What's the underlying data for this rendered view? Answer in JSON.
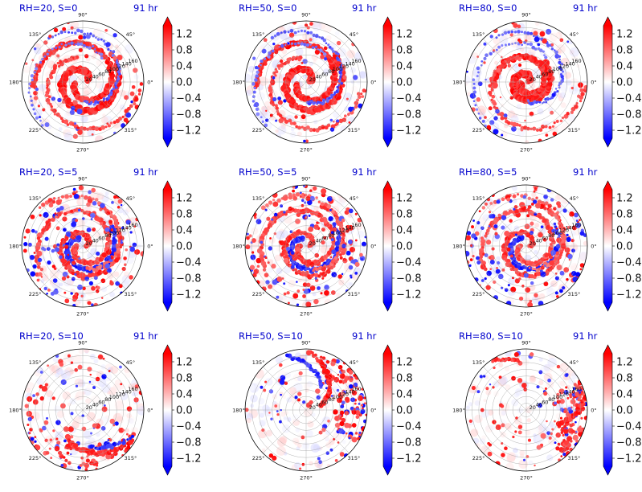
{
  "time_label": "91 hr",
  "colorbar": {
    "ticks": [
      "1.2",
      "0.8",
      "0.4",
      "0.0",
      "−0.4",
      "−0.8",
      "−1.2"
    ],
    "tick_values": [
      1.2,
      0.8,
      0.4,
      0.0,
      -0.4,
      -0.8,
      -1.2
    ],
    "vmin": -1.4,
    "vmax": 1.4,
    "cmap": "bwr",
    "extend": "both"
  },
  "polar_axes": {
    "angle_labels": [
      "0°",
      "45°",
      "90°",
      "135°",
      "180°",
      "225°",
      "270°",
      "315°"
    ],
    "angle_values": [
      0,
      45,
      90,
      135,
      180,
      225,
      270,
      315
    ],
    "radial_labels": [
      "20",
      "40",
      "60",
      "80",
      "100",
      "120",
      "140",
      "160"
    ],
    "radial_values": [
      20,
      40,
      60,
      80,
      100,
      120,
      140,
      160
    ],
    "rmax": 180
  },
  "colors": {
    "positive": "#ff0000",
    "negative": "#0000ff",
    "zero": "#ffffff",
    "title": "#0000cc"
  },
  "chart_data": [
    {
      "type": "heatmap",
      "projection": "polar",
      "title": "RH=20, S=0",
      "time": "91 hr",
      "pattern": "spiral"
    },
    {
      "type": "heatmap",
      "projection": "polar",
      "title": "RH=50, S=0",
      "time": "91 hr",
      "pattern": "spiral"
    },
    {
      "type": "heatmap",
      "projection": "polar",
      "title": "RH=80, S=0",
      "time": "91 hr",
      "pattern": "compact-spiral"
    },
    {
      "type": "heatmap",
      "projection": "polar",
      "title": "RH=20, S=5",
      "time": "91 hr",
      "pattern": "spiral-scatter"
    },
    {
      "type": "heatmap",
      "projection": "polar",
      "title": "RH=50, S=5",
      "time": "91 hr",
      "pattern": "spiral-scatter"
    },
    {
      "type": "heatmap",
      "projection": "polar",
      "title": "RH=80, S=5",
      "time": "91 hr",
      "pattern": "spiral-scatter"
    },
    {
      "type": "heatmap",
      "projection": "polar",
      "title": "RH=20, S=10",
      "time": "91 hr",
      "pattern": "sparse-lower"
    },
    {
      "type": "heatmap",
      "projection": "polar",
      "title": "RH=50, S=10",
      "time": "91 hr",
      "pattern": "sparse-upper-right"
    },
    {
      "type": "heatmap",
      "projection": "polar",
      "title": "RH=80, S=10",
      "time": "91 hr",
      "pattern": "sparse-right"
    }
  ]
}
